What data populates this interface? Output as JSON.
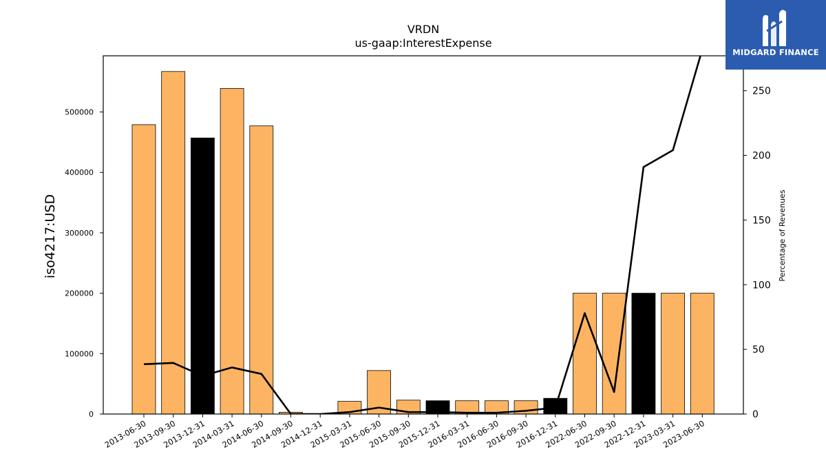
{
  "brand": {
    "logo_text": "MIDGARD FINANCE",
    "logo_color": "#2b5cb0",
    "icon": "midgard-logo-icon"
  },
  "chart_data": {
    "type": "bar",
    "title": "VRDN",
    "subtitle": "us-gaap:InterestExpense",
    "ylabel": "iso4217:USD",
    "y2label": "Percentage of Revenues",
    "categories": [
      "2013-06-30",
      "2013-09-30",
      "2013-12-31",
      "2014-03-31",
      "2014-06-30",
      "2014-09-30",
      "2014-12-31",
      "2015-03-31",
      "2015-06-30",
      "2015-09-30",
      "2015-12-31",
      "2016-03-31",
      "2016-06-30",
      "2016-09-30",
      "2016-12-31",
      "2022-06-30",
      "2022-09-30",
      "2022-12-31",
      "2023-03-31",
      "2023-06-30"
    ],
    "series": [
      {
        "type": "bar",
        "values": [
          479000,
          567000,
          457000,
          539000,
          477000,
          3000,
          0,
          21000,
          72000,
          23000,
          22000,
          22000,
          22000,
          22000,
          26000,
          200000,
          200000,
          200000,
          200000,
          200000
        ],
        "highlight_indices": [
          2,
          10,
          14,
          17
        ],
        "color": "#fdb462",
        "highlight_color": "#000000"
      },
      {
        "type": "line",
        "axis": "right",
        "values": [
          38.5,
          39.5,
          29.5,
          36,
          31,
          0,
          0,
          1.5,
          5,
          1.5,
          1.5,
          1,
          1,
          2.5,
          5,
          78,
          17,
          191,
          204,
          282
        ],
        "color": "#000000"
      }
    ],
    "ylim": [
      0,
      593000
    ],
    "y2lim": [
      0,
      277
    ],
    "yticks": [
      0,
      100000,
      200000,
      300000,
      400000,
      500000
    ],
    "y2ticks": [
      0,
      50,
      100,
      150,
      200,
      250
    ],
    "grid": false
  }
}
